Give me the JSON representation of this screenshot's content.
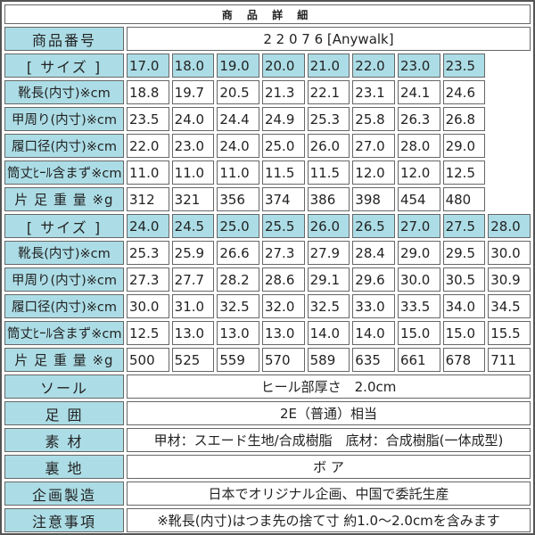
{
  "title": "商 品 詳 細",
  "product_number": {
    "label": "商品番号",
    "value": "2 2 0 7 6 [Anywalk]"
  },
  "size_tables": [
    {
      "rows": [
        {
          "label": "[ サイズ ]",
          "kind": "size",
          "values": [
            "17.0",
            "18.0",
            "19.0",
            "20.0",
            "21.0",
            "22.0",
            "23.0",
            "23.5"
          ]
        },
        {
          "label": "靴長(内寸)※cm",
          "values": [
            "18.8",
            "19.7",
            "20.5",
            "21.3",
            "22.1",
            "23.1",
            "24.1",
            "24.6"
          ]
        },
        {
          "label": "甲周り(内寸)※cm",
          "values": [
            "23.5",
            "24.0",
            "24.4",
            "24.9",
            "25.3",
            "25.8",
            "26.3",
            "26.8"
          ]
        },
        {
          "label": "履口径(内寸)※cm",
          "values": [
            "22.0",
            "23.0",
            "24.0",
            "25.0",
            "26.0",
            "27.0",
            "28.0",
            "29.0"
          ]
        },
        {
          "label": "筒丈ﾋｰﾙ含まず※cm",
          "values": [
            "11.0",
            "11.0",
            "11.0",
            "11.5",
            "11.5",
            "12.0",
            "12.0",
            "12.5"
          ]
        },
        {
          "label": "片 足 重 量 ※g",
          "values": [
            "312",
            "321",
            "356",
            "374",
            "386",
            "398",
            "454",
            "480"
          ]
        }
      ]
    },
    {
      "rows": [
        {
          "label": "[ サイズ ]",
          "kind": "size",
          "values": [
            "24.0",
            "24.5",
            "25.0",
            "25.5",
            "26.0",
            "26.5",
            "27.0",
            "27.5",
            "28.0"
          ]
        },
        {
          "label": "靴長(内寸)※cm",
          "values": [
            "25.3",
            "25.9",
            "26.6",
            "27.3",
            "27.9",
            "28.4",
            "29.0",
            "29.5",
            "30.0"
          ]
        },
        {
          "label": "甲周り(内寸)※cm",
          "values": [
            "27.3",
            "27.7",
            "28.2",
            "28.6",
            "29.1",
            "29.6",
            "30.0",
            "30.5",
            "30.9"
          ]
        },
        {
          "label": "履口径(内寸)※cm",
          "values": [
            "30.0",
            "31.0",
            "32.5",
            "32.0",
            "32.5",
            "33.0",
            "33.5",
            "34.0",
            "34.5"
          ]
        },
        {
          "label": "筒丈ﾋｰﾙ含まず※cm",
          "values": [
            "12.5",
            "13.0",
            "13.0",
            "13.0",
            "14.0",
            "14.0",
            "15.0",
            "15.0",
            "15.5"
          ]
        },
        {
          "label": "片 足 重 量 ※g",
          "values": [
            "500",
            "525",
            "559",
            "570",
            "589",
            "635",
            "661",
            "678",
            "711"
          ]
        }
      ]
    }
  ],
  "details": [
    {
      "label": "ソール",
      "value": "ヒール部厚さ　2.0cm"
    },
    {
      "label": "足 囲",
      "value": "2E（普通）相当"
    },
    {
      "label": "素 材",
      "value": "甲材：スエード生地/合成樹脂　底材：合成樹脂(一体成型)"
    },
    {
      "label": "裏 地",
      "value": "ボ ア"
    },
    {
      "label": "企画製造",
      "value": "日本でオリジナル企画、中国で委託生産"
    },
    {
      "label": "注意事項",
      "value": "※靴長(内寸)はつま先の捨て寸 約1.0～2.0cmを含みます"
    }
  ],
  "colors": {
    "label_bg": "#acdde6",
    "border": "#666666"
  }
}
